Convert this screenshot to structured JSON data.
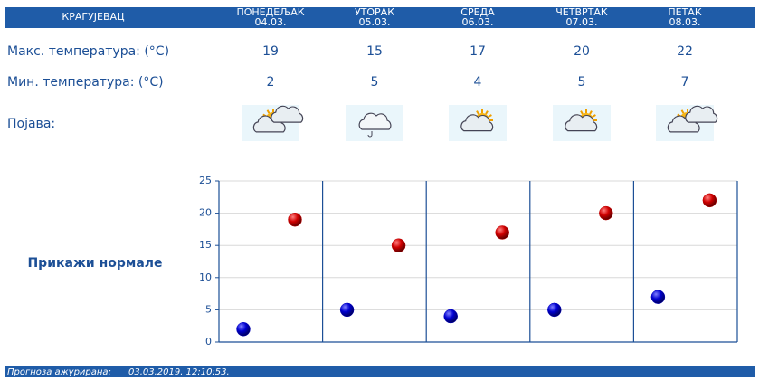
{
  "header": {
    "city": "КРАГУЈЕВАЦ"
  },
  "rows": {
    "max_label": "Макс. температура: (°C)",
    "min_label": "Мин. температура: (°C)",
    "icon_label": "Појава:"
  },
  "forecast": {
    "days": [
      {
        "name": "ПОНЕДЕЉАК",
        "date": "04.03.",
        "max": 19,
        "min": 2,
        "icon": "sun-cloud"
      },
      {
        "name": "УТОРАК",
        "date": "05.03.",
        "max": 15,
        "min": 5,
        "icon": "cloud-rain"
      },
      {
        "name": "СРЕДА",
        "date": "06.03.",
        "max": 17,
        "min": 4,
        "icon": "cloud-sun"
      },
      {
        "name": "ЧЕТВРТАК",
        "date": "07.03.",
        "max": 20,
        "min": 5,
        "icon": "cloud-sun"
      },
      {
        "name": "ПЕТАК",
        "date": "08.03.",
        "max": 22,
        "min": 7,
        "icon": "sun-cloud"
      }
    ]
  },
  "chart": {
    "ylim": [
      0,
      25
    ],
    "yticks": [
      0,
      5,
      10,
      15,
      20,
      25
    ],
    "min_color": "#0000c0",
    "max_color": "#c00000",
    "grid": true
  },
  "link": {
    "text": "Прикажи нормале"
  },
  "footer": {
    "label": "Прогноза ажурирана:",
    "timestamp": "03.03.2019. 12:10:53."
  }
}
